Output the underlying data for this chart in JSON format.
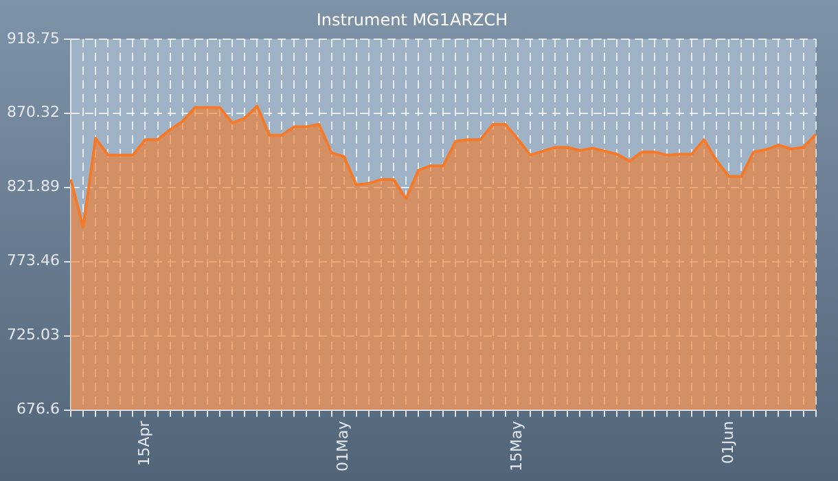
{
  "chart_data": {
    "type": "area",
    "title": "Instrument MG1ARZCH",
    "categories": [
      null,
      null,
      null,
      null,
      null,
      null,
      "15Apr",
      null,
      null,
      null,
      null,
      null,
      null,
      null,
      null,
      null,
      null,
      null,
      null,
      null,
      null,
      null,
      "01May",
      null,
      null,
      null,
      null,
      null,
      null,
      null,
      null,
      null,
      null,
      null,
      null,
      null,
      "15May",
      null,
      null,
      null,
      null,
      null,
      null,
      null,
      null,
      null,
      null,
      null,
      null,
      null,
      null,
      null,
      null,
      "01Jun",
      null,
      null,
      null,
      null,
      null,
      null,
      null
    ],
    "series": [
      {
        "color": "#f47a2a",
        "values": [
          827,
          796,
          854,
          843,
          843,
          843,
          853,
          853,
          859.5,
          865,
          874,
          874,
          874,
          864,
          867,
          875,
          856,
          856,
          861.5,
          861.5,
          863,
          844.5,
          842,
          823.5,
          824.5,
          827,
          827,
          814.5,
          833,
          836,
          836,
          852,
          853,
          853,
          863,
          863,
          853.5,
          843,
          845.5,
          848,
          848,
          846,
          847.5,
          845.5,
          843.5,
          839,
          845,
          845,
          843,
          843.5,
          843.5,
          853,
          839.5,
          829,
          829,
          845,
          846.5,
          849.5,
          847,
          848,
          856.5
        ]
      }
    ],
    "ylim": [
      676.6,
      918.75
    ],
    "yticks": [
      676.6,
      725.03,
      773.46,
      821.89,
      870.32,
      918.75
    ],
    "grid": true,
    "legend": false,
    "marker": "none",
    "line_style": "solid"
  }
}
